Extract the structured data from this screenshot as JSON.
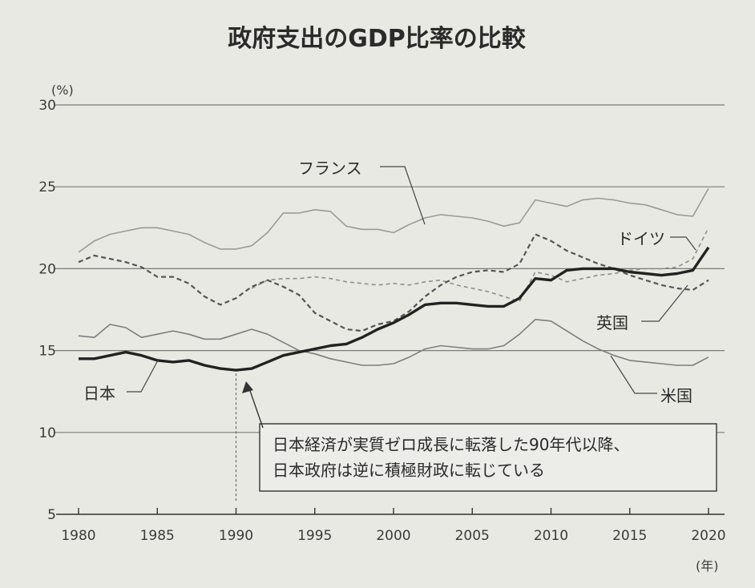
{
  "chart_data": {
    "type": "line",
    "title": "政府支出のGDP比率の比較",
    "y_unit": "(%)",
    "x_unit": "(年)",
    "ylim": [
      5,
      30
    ],
    "xlim": [
      1980,
      2020
    ],
    "yticks": [
      5,
      10,
      15,
      20,
      25,
      30
    ],
    "xticks": [
      1980,
      1985,
      1990,
      1995,
      2000,
      2005,
      2010,
      2015,
      2020
    ],
    "grid": "horizontal",
    "series": [
      {
        "name": "フランス",
        "color": "#9a9a9a",
        "style": "solid",
        "width": 1.6,
        "x": [
          1980,
          1981,
          1982,
          1983,
          1984,
          1985,
          1986,
          1987,
          1988,
          1989,
          1990,
          1991,
          1992,
          1993,
          1994,
          1995,
          1996,
          1997,
          1998,
          1999,
          2000,
          2001,
          2002,
          2003,
          2004,
          2005,
          2006,
          2007,
          2008,
          2009,
          2010,
          2011,
          2012,
          2013,
          2014,
          2015,
          2016,
          2017,
          2018,
          2019,
          2020
        ],
        "y": [
          21.0,
          21.7,
          22.1,
          22.3,
          22.5,
          22.5,
          22.3,
          22.1,
          21.6,
          21.2,
          21.2,
          21.4,
          22.2,
          23.4,
          23.4,
          23.6,
          23.5,
          22.6,
          22.4,
          22.4,
          22.2,
          22.7,
          23.1,
          23.3,
          23.2,
          23.1,
          22.9,
          22.6,
          22.8,
          24.2,
          24.0,
          23.8,
          24.2,
          24.3,
          24.2,
          24.0,
          23.9,
          23.6,
          23.3,
          23.2,
          24.9
        ]
      },
      {
        "name": "ドイツ",
        "color": "#555555",
        "style": "dashed",
        "width": 2.2,
        "x": [
          1980,
          1981,
          1982,
          1983,
          1984,
          1985,
          1986,
          1987,
          1988,
          1989,
          1990,
          1991,
          1992,
          1993,
          1994,
          1995,
          1996,
          1997,
          1998,
          1999,
          2000,
          2001,
          2002,
          2003,
          2004,
          2005,
          2006,
          2007,
          2008,
          2009,
          2010,
          2011,
          2012,
          2013,
          2014,
          2015,
          2016,
          2017,
          2018,
          2019,
          2020
        ],
        "y": [
          20.4,
          20.8,
          20.6,
          20.4,
          20.1,
          19.5,
          19.5,
          19.1,
          18.3,
          17.8,
          18.2,
          18.9,
          19.3,
          18.9,
          18.4,
          17.3,
          16.8,
          16.3,
          16.2,
          16.6,
          16.8,
          17.4,
          18.3,
          19.0,
          19.5,
          19.8,
          19.9,
          19.8,
          20.3,
          22.1,
          21.7,
          21.1,
          20.7,
          20.3,
          20.0,
          19.6,
          19.3,
          19.0,
          18.8,
          18.7,
          19.3
        ]
      },
      {
        "name": "英国",
        "color": "#8e8e8e",
        "style": "dashed",
        "width": 1.6,
        "x": [
          1980,
          1981,
          1982,
          1983,
          1984,
          1985,
          1986,
          1987,
          1988,
          1989,
          1990,
          1991,
          1992,
          1993,
          1994,
          1995,
          1996,
          1997,
          1998,
          1999,
          2000,
          2001,
          2002,
          2003,
          2004,
          2005,
          2006,
          2007,
          2008,
          2009,
          2010,
          2011,
          2012,
          2013,
          2014,
          2015,
          2016,
          2017,
          2018,
          2019,
          2020
        ],
        "y": [
          null,
          null,
          null,
          null,
          null,
          null,
          null,
          null,
          null,
          null,
          null,
          18.8,
          19.3,
          19.4,
          19.4,
          19.5,
          19.4,
          19.2,
          19.1,
          19.0,
          19.1,
          19.0,
          19.2,
          19.3,
          19.0,
          18.8,
          18.6,
          18.3,
          18.0,
          19.8,
          19.6,
          19.2,
          19.4,
          19.6,
          19.7,
          19.9,
          20.0,
          20.0,
          20.1,
          20.6,
          22.5
        ]
      },
      {
        "name": "米国",
        "color": "#7d7d7d",
        "style": "solid",
        "width": 1.6,
        "x": [
          1980,
          1981,
          1982,
          1983,
          1984,
          1985,
          1986,
          1987,
          1988,
          1989,
          1990,
          1991,
          1992,
          1993,
          1994,
          1995,
          1996,
          1997,
          1998,
          1999,
          2000,
          2001,
          2002,
          2003,
          2004,
          2005,
          2006,
          2007,
          2008,
          2009,
          2010,
          2011,
          2012,
          2013,
          2014,
          2015,
          2016,
          2017,
          2018,
          2019,
          2020
        ],
        "y": [
          15.9,
          15.8,
          16.6,
          16.4,
          15.8,
          16.0,
          16.2,
          16.0,
          15.7,
          15.7,
          16.0,
          16.3,
          16.0,
          15.5,
          15.0,
          14.8,
          14.5,
          14.3,
          14.1,
          14.1,
          14.2,
          14.6,
          15.1,
          15.3,
          15.2,
          15.1,
          15.1,
          15.3,
          16.0,
          16.9,
          16.8,
          16.2,
          15.6,
          15.1,
          14.7,
          14.4,
          14.3,
          14.2,
          14.1,
          14.1,
          14.6
        ]
      },
      {
        "name": "日本",
        "color": "#222222",
        "style": "solid",
        "width": 3.4,
        "x": [
          1980,
          1981,
          1982,
          1983,
          1984,
          1985,
          1986,
          1987,
          1988,
          1989,
          1990,
          1991,
          1992,
          1993,
          1994,
          1995,
          1996,
          1997,
          1998,
          1999,
          2000,
          2001,
          2002,
          2003,
          2004,
          2005,
          2006,
          2007,
          2008,
          2009,
          2010,
          2011,
          2012,
          2013,
          2014,
          2015,
          2016,
          2017,
          2018,
          2019,
          2020
        ],
        "y": [
          14.5,
          14.5,
          14.7,
          14.9,
          14.7,
          14.4,
          14.3,
          14.4,
          14.1,
          13.9,
          13.8,
          13.9,
          14.3,
          14.7,
          14.9,
          15.1,
          15.3,
          15.4,
          15.8,
          16.3,
          16.7,
          17.2,
          17.8,
          17.9,
          17.9,
          17.8,
          17.7,
          17.7,
          18.2,
          19.4,
          19.3,
          19.9,
          20.0,
          20.0,
          20.0,
          19.8,
          19.7,
          19.6,
          19.7,
          19.9,
          21.3
        ]
      }
    ],
    "annotation": {
      "line1": "日本経済が実質ゼロ成長に転落した90年代以降、",
      "line2": "日本政府は逆に積極財政に転じている",
      "year": 1990
    }
  }
}
